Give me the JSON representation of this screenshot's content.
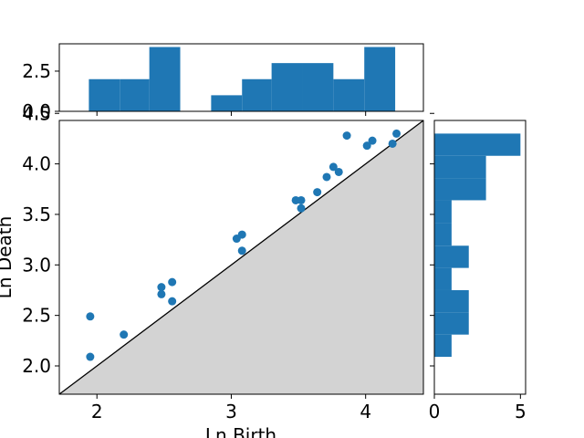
{
  "chart_data": [
    {
      "type": "scatter",
      "panel": "main",
      "xlabel": "Ln Birth",
      "ylabel": "Ln Death",
      "xlim": [
        1.72,
        4.43
      ],
      "ylim": [
        1.72,
        4.43
      ],
      "x_ticks": [
        2,
        3,
        4
      ],
      "y_ticks": [
        2.0,
        2.5,
        3.0,
        3.5,
        4.0,
        4.5
      ],
      "y_tick_labels": [
        "2.0",
        "2.5",
        "3.0",
        "3.5",
        "4.0",
        "4.5"
      ],
      "diagonal": "y = x",
      "shaded_region": "below diagonal",
      "points": [
        {
          "x": 1.95,
          "y": 2.09
        },
        {
          "x": 1.95,
          "y": 2.49
        },
        {
          "x": 2.2,
          "y": 2.31
        },
        {
          "x": 2.48,
          "y": 2.71
        },
        {
          "x": 2.48,
          "y": 2.78
        },
        {
          "x": 2.56,
          "y": 2.64
        },
        {
          "x": 2.56,
          "y": 2.83
        },
        {
          "x": 3.04,
          "y": 3.26
        },
        {
          "x": 3.08,
          "y": 3.3
        },
        {
          "x": 3.08,
          "y": 3.14
        },
        {
          "x": 3.48,
          "y": 3.64
        },
        {
          "x": 3.52,
          "y": 3.64
        },
        {
          "x": 3.52,
          "y": 3.56
        },
        {
          "x": 3.64,
          "y": 3.72
        },
        {
          "x": 3.71,
          "y": 3.87
        },
        {
          "x": 3.76,
          "y": 3.97
        },
        {
          "x": 3.8,
          "y": 3.92
        },
        {
          "x": 3.86,
          "y": 4.28
        },
        {
          "x": 4.01,
          "y": 4.18
        },
        {
          "x": 4.05,
          "y": 4.23
        },
        {
          "x": 4.2,
          "y": 4.2
        },
        {
          "x": 4.23,
          "y": 4.3
        }
      ]
    },
    {
      "type": "bar",
      "panel": "top-histogram",
      "orientation": "vertical",
      "ylim": [
        0,
        4.2
      ],
      "y_ticks": [
        0,
        2.5
      ],
      "y_tick_labels": [
        "0.0",
        "2.5"
      ],
      "bin_edges": [
        1.94,
        2.17,
        2.39,
        2.62,
        2.85,
        3.08,
        3.3,
        3.53,
        3.76,
        3.99,
        4.22
      ],
      "values": [
        2,
        2,
        4,
        0,
        1,
        2,
        3,
        3,
        2,
        4
      ]
    },
    {
      "type": "bar",
      "panel": "right-histogram",
      "orientation": "horizontal",
      "xlim": [
        0,
        5.3
      ],
      "x_ticks": [
        0,
        5
      ],
      "x_tick_labels": [
        "0",
        "5"
      ],
      "bin_edges": [
        2.09,
        2.31,
        2.53,
        2.75,
        2.97,
        3.19,
        3.41,
        3.64,
        3.86,
        4.08,
        4.3
      ],
      "values": [
        1,
        2,
        2,
        1,
        2,
        1,
        1,
        3,
        3,
        5
      ]
    }
  ],
  "colors": {
    "marker": "#1f77b4",
    "bar": "#1f77b4",
    "fill": "#d3d3d3",
    "line": "#000000"
  }
}
